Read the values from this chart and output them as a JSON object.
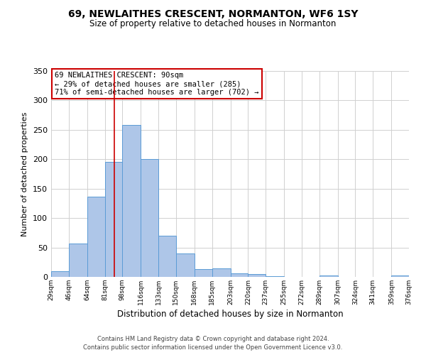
{
  "title": "69, NEWLAITHES CRESCENT, NORMANTON, WF6 1SY",
  "subtitle": "Size of property relative to detached houses in Normanton",
  "xlabel": "Distribution of detached houses by size in Normanton",
  "ylabel": "Number of detached properties",
  "bar_color": "#aec6e8",
  "bar_edgecolor": "#5b9bd5",
  "background_color": "#ffffff",
  "grid_color": "#d0d0d0",
  "bin_edges": [
    29,
    46,
    64,
    81,
    98,
    116,
    133,
    150,
    168,
    185,
    203,
    220,
    237,
    255,
    272,
    289,
    307,
    324,
    341,
    359,
    376
  ],
  "bar_heights": [
    10,
    57,
    136,
    195,
    258,
    200,
    70,
    40,
    13,
    14,
    6,
    5,
    1,
    0,
    0,
    2,
    0,
    0,
    0,
    2
  ],
  "red_line_x": 90,
  "ylim": [
    0,
    350
  ],
  "yticks": [
    0,
    50,
    100,
    150,
    200,
    250,
    300,
    350
  ],
  "annotation_text": "69 NEWLAITHES CRESCENT: 90sqm\n← 29% of detached houses are smaller (285)\n71% of semi-detached houses are larger (702) →",
  "annotation_box_color": "#ffffff",
  "annotation_box_edgecolor": "#cc0000",
  "footer_line1": "Contains HM Land Registry data © Crown copyright and database right 2024.",
  "footer_line2": "Contains public sector information licensed under the Open Government Licence v3.0.",
  "tick_labels": [
    "29sqm",
    "46sqm",
    "64sqm",
    "81sqm",
    "98sqm",
    "116sqm",
    "133sqm",
    "150sqm",
    "168sqm",
    "185sqm",
    "203sqm",
    "220sqm",
    "237sqm",
    "255sqm",
    "272sqm",
    "289sqm",
    "307sqm",
    "324sqm",
    "341sqm",
    "359sqm",
    "376sqm"
  ]
}
